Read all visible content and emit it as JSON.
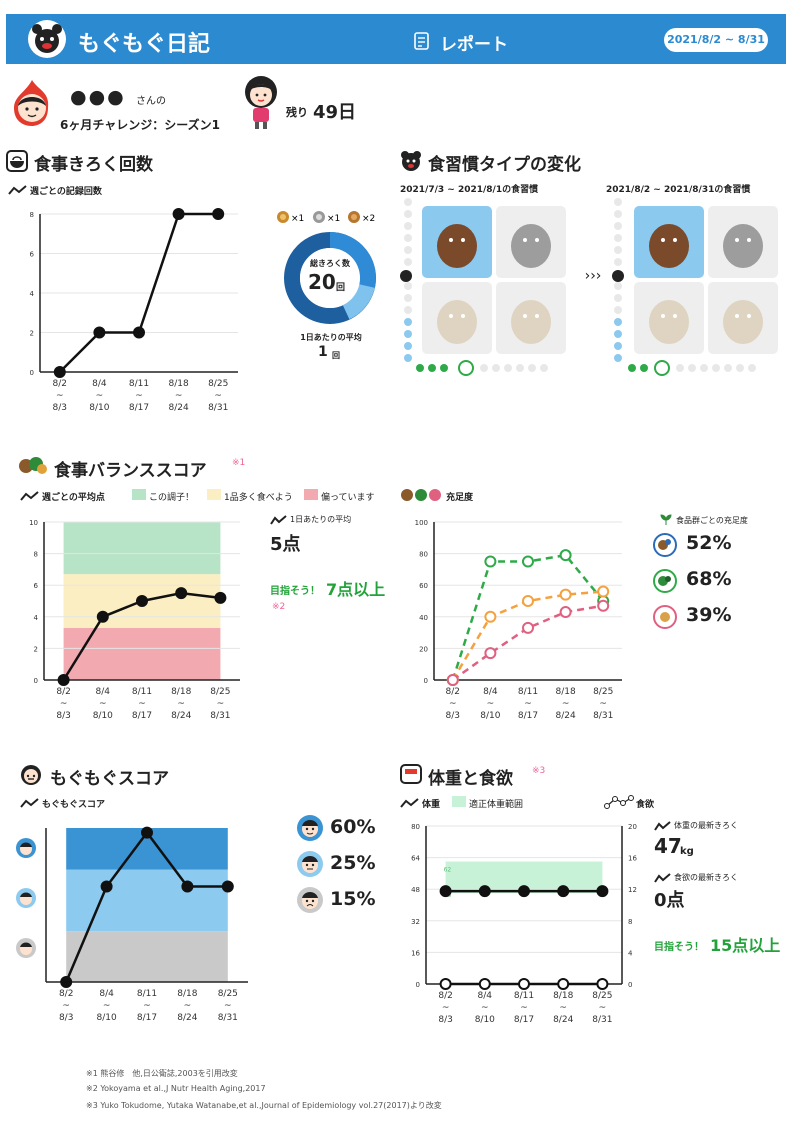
{
  "header": {
    "app_title": "もぐもぐ日記",
    "report_label": "レポート",
    "date_range": "2021/8/2 ~ 8/31"
  },
  "profile": {
    "name": "●●●",
    "name_suffix": "さんの",
    "challenge": "6ヶ月チャレンジ：シーズン1",
    "remaining_label": "残り",
    "remaining_value": "49日"
  },
  "meals": {
    "title": "食事きろく回数",
    "legend": "週ごとの記録回数",
    "badge_counts": [
      "×1",
      "×1",
      "×2"
    ],
    "total_label": "総きろく数",
    "total_value": "20",
    "total_unit": "回",
    "avg_label": "1日あたりの平均",
    "avg_value": "1",
    "avg_unit": "回"
  },
  "habit": {
    "title": "食習慣タイプの変化",
    "before_period": "2021/7/3 ~ 2021/8/1の食習慣",
    "after_period": "2021/8/2 ~ 2021/8/31の食習慣"
  },
  "balance": {
    "title": "食事バランススコア",
    "note_mark": "※1",
    "legend": "週ごとの平均点",
    "zone_good": "この調子！",
    "zone_mid": "1品多く食べよう",
    "zone_bad": "偏っています",
    "avg_label": "1日あたりの平均",
    "avg_value": "5点",
    "target_prefix": "目指そう！",
    "target_value": "7点以上",
    "target_note": "※2",
    "fill_title": "充足度",
    "group_label": "食品群ごとの充足度",
    "group_values": [
      "52%",
      "68%",
      "39%"
    ]
  },
  "mogu": {
    "title": "もぐもぐスコア",
    "legend": "もぐもぐスコア",
    "levels": [
      "60%",
      "25%",
      "15%"
    ]
  },
  "weight": {
    "title": "体重と食欲",
    "note_mark": "※3",
    "legend_weight": "体重",
    "legend_range": "適正体重範囲",
    "legend_appetite": "食欲",
    "range_upper": "62",
    "range_lower": "46",
    "latest_weight_label": "体重の最新きろく",
    "latest_weight_value": "47",
    "latest_weight_unit": "kg",
    "latest_appetite_label": "食欲の最新きろく",
    "latest_appetite_value": "0点",
    "target_prefix": "目指そう！",
    "target_value": "15点以上"
  },
  "footnotes": [
    "※1 熊谷修　他,日公衛誌,2003を引用改変",
    "※2 Yokoyama et al.,J Nutr Health Aging,2017",
    "※3 Yuko Tokudome, Yutaka Watanabe,et al.,Journal of Epidemiology vol.27(2017)より改変"
  ],
  "chart_data": [
    {
      "type": "line",
      "title": "食事きろく回数",
      "series": [
        {
          "name": "週ごとの記録回数",
          "values": [
            0,
            2,
            2,
            8,
            8
          ]
        }
      ],
      "categories": [
        "8/2 ~ 8/3",
        "8/4 ~ 8/10",
        "8/11 ~ 8/17",
        "8/18 ~ 8/24",
        "8/25 ~ 8/31"
      ],
      "ylim": [
        0,
        8
      ],
      "yticks": [
        "0",
        "2",
        "4",
        "6",
        "8"
      ]
    },
    {
      "type": "line",
      "title": "食事バランススコア",
      "series": [
        {
          "name": "週ごとの平均点",
          "values": [
            0,
            4,
            5,
            5.5,
            5.2
          ]
        }
      ],
      "categories": [
        "8/2 ~ 8/3",
        "8/4 ~ 8/10",
        "8/11 ~ 8/17",
        "8/18 ~ 8/24",
        "8/25 ~ 8/31"
      ],
      "ylim": [
        0,
        10
      ],
      "yticks": [
        "0",
        "2",
        "4",
        "6",
        "8",
        "10"
      ],
      "bands": [
        [
          0,
          3.3,
          "#f3a9b0"
        ],
        [
          3.3,
          6.7,
          "#fbeec2"
        ],
        [
          6.7,
          10,
          "#b7e3c7"
        ]
      ]
    },
    {
      "type": "line",
      "title": "充足度",
      "series": [
        {
          "name": "",
          "color": "#2eaa48",
          "values": [
            0,
            75,
            75,
            79,
            50
          ]
        },
        {
          "name": "",
          "color": "#f4a13f",
          "values": [
            0,
            40,
            50,
            54,
            56
          ]
        },
        {
          "name": "",
          "color": "#e06080",
          "values": [
            0,
            17,
            33,
            43,
            47
          ]
        }
      ],
      "categories": [
        "8/2 ~ 8/3",
        "8/4 ~ 8/10",
        "8/11 ~ 8/17",
        "8/18 ~ 8/24",
        "8/25 ~ 8/31"
      ],
      "ylim": [
        0,
        100
      ],
      "yticks": [
        "0",
        "20",
        "40",
        "60",
        "80",
        "100"
      ]
    },
    {
      "type": "line",
      "title": "もぐもぐスコア",
      "series": [
        {
          "name": "もぐもぐスコア",
          "values": [
            0,
            62,
            97,
            62,
            62
          ]
        }
      ],
      "categories": [
        "8/2 ~ 8/3",
        "8/4 ~ 8/10",
        "8/11 ~ 8/17",
        "8/18 ~ 8/24",
        "8/25 ~ 8/31"
      ],
      "ylim": [
        0,
        100
      ],
      "bands": [
        [
          0,
          33,
          "#c9c9c9"
        ],
        [
          33,
          73,
          "#8ccaf0"
        ],
        [
          73,
          100,
          "#3a93d2"
        ]
      ]
    },
    {
      "type": "line",
      "title": "体重と食欲",
      "series": [
        {
          "name": "体重",
          "values": [
            47,
            47,
            47,
            47,
            47
          ]
        },
        {
          "name": "食欲",
          "values": [
            0,
            0,
            0,
            0,
            0
          ]
        }
      ],
      "categories": [
        "8/2 ~ 8/3",
        "8/4 ~ 8/10",
        "8/11 ~ 8/17",
        "8/18 ~ 8/24",
        "8/25 ~ 8/31"
      ],
      "ylim": [
        0,
        80
      ],
      "yticks": [
        "0",
        "16",
        "32",
        "48",
        "64",
        "80"
      ],
      "y2ticks": [
        "0",
        "4",
        "8",
        "12",
        "16",
        "20"
      ],
      "band": [
        46,
        62
      ]
    }
  ]
}
